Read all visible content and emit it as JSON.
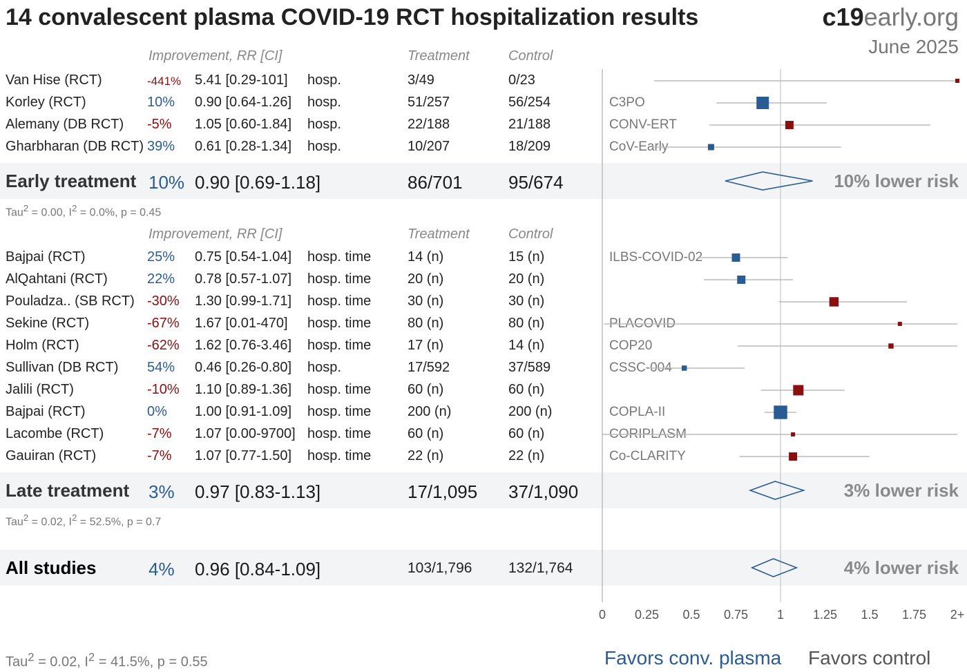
{
  "title": "14 convalescent plasma COVID-19 RCT hospitalization results",
  "brand": {
    "bold": "c19",
    "light": "early.org"
  },
  "date": "June 2025",
  "headers": {
    "improvement": "Improvement, RR [CI]",
    "treatment": "Treatment",
    "control": "Control"
  },
  "early": {
    "label": "Early treatment",
    "improvement": "10%",
    "rr": "0.90 [0.69-1.18]",
    "treatment": "86/701",
    "control": "95/674",
    "risk": "10% lower risk",
    "tau_pre": "Tau",
    "tau_post": " = 0.00, I",
    "tau_end": " = 0.0%, p = 0.45",
    "sup": "2"
  },
  "late": {
    "label": "Late treatment",
    "improvement": "3%",
    "rr": "0.97 [0.83-1.13]",
    "treatment": "17/1,095",
    "control": "37/1,090",
    "risk": "3% lower risk",
    "tau_pre": "Tau",
    "tau_post": " = 0.02, I",
    "tau_end": " = 52.5%, p = 0.7",
    "sup": "2"
  },
  "all": {
    "label": "All studies",
    "improvement": "4%",
    "rr": "0.96 [0.84-1.09]",
    "treatment": "103/1,796",
    "control": "132/1,764",
    "risk": "4% lower risk",
    "tau_pre": "Tau",
    "tau_post": " = 0.02, I",
    "tau_end": " = 41.5%, p = 0.55",
    "sup": "2"
  },
  "favors": {
    "left": "Favors conv. plasma",
    "right": "Favors control"
  },
  "colors": {
    "favor": "#2a5c94",
    "against": "#8a1010",
    "band": "#f3f4f6"
  },
  "chart_data": {
    "type": "forest",
    "xlim": [
      0,
      2
    ],
    "x_ticks": [
      "0",
      "0.25",
      "0.5",
      "0.75",
      "1",
      "1.25",
      "1.5",
      "1.75",
      "2+"
    ],
    "reference_line": 1,
    "studies": [
      {
        "name": "Van Hise (RCT)",
        "improvement": "-441%",
        "rr_text": "5.41 [0.29-101]",
        "outcome": "hosp.",
        "treatment": "3/49",
        "control": "0/23",
        "trial": "",
        "rr": 5.41,
        "lo": 0.29,
        "hi": 101,
        "weight": 1,
        "group": "early"
      },
      {
        "name": "Korley (RCT)",
        "improvement": "10%",
        "rr_text": "0.90 [0.64-1.26]",
        "outcome": "hosp.",
        "treatment": "51/257",
        "control": "56/254",
        "trial": "C3PO",
        "rr": 0.9,
        "lo": 0.64,
        "hi": 1.26,
        "weight": 5,
        "group": "early"
      },
      {
        "name": "Alemany (DB RCT)",
        "improvement": "-5%",
        "rr_text": "1.05 [0.60-1.84]",
        "outcome": "hosp.",
        "treatment": "22/188",
        "control": "21/188",
        "trial": "CONV-ERT",
        "rr": 1.05,
        "lo": 0.6,
        "hi": 1.84,
        "weight": 3,
        "group": "early"
      },
      {
        "name": "Gharbharan (DB RCT)",
        "improvement": "39%",
        "rr_text": "0.61 [0.28-1.34]",
        "outcome": "hosp.",
        "treatment": "10/207",
        "control": "18/209",
        "trial": "CoV-Early",
        "rr": 0.61,
        "lo": 0.28,
        "hi": 1.34,
        "weight": 2,
        "group": "early"
      },
      {
        "name": "Bajpai (RCT)",
        "improvement": "25%",
        "rr_text": "0.75 [0.54-1.04]",
        "outcome": "hosp. time",
        "treatment": "14 (n)",
        "control": "15 (n)",
        "trial": "ILBS-COVID-02",
        "rr": 0.75,
        "lo": 0.54,
        "hi": 1.04,
        "weight": 3,
        "group": "late"
      },
      {
        "name": "AlQahtani (RCT)",
        "improvement": "22%",
        "rr_text": "0.78 [0.57-1.07]",
        "outcome": "hosp. time",
        "treatment": "20 (n)",
        "control": "20 (n)",
        "trial": "",
        "rr": 0.78,
        "lo": 0.57,
        "hi": 1.07,
        "weight": 3,
        "group": "late"
      },
      {
        "name": "Pouladza.. (SB RCT)",
        "improvement": "-30%",
        "rr_text": "1.30 [0.99-1.71]",
        "outcome": "hosp. time",
        "treatment": "30 (n)",
        "control": "30 (n)",
        "trial": "",
        "rr": 1.3,
        "lo": 0.99,
        "hi": 1.71,
        "weight": 3.5,
        "group": "late"
      },
      {
        "name": "Sekine (RCT)",
        "improvement": "-67%",
        "rr_text": "1.67 [0.01-470]",
        "outcome": "hosp. time",
        "treatment": "80 (n)",
        "control": "80 (n)",
        "trial": "PLACOVID",
        "rr": 1.67,
        "lo": 0.01,
        "hi": 470,
        "weight": 1,
        "group": "late"
      },
      {
        "name": "Holm (RCT)",
        "improvement": "-62%",
        "rr_text": "1.62 [0.76-3.46]",
        "outcome": "hosp. time",
        "treatment": "17 (n)",
        "control": "14 (n)",
        "trial": "COP20",
        "rr": 1.62,
        "lo": 0.76,
        "hi": 3.46,
        "weight": 1.5,
        "group": "late"
      },
      {
        "name": "Sullivan (DB RCT)",
        "improvement": "54%",
        "rr_text": "0.46 [0.26-0.80]",
        "outcome": "hosp.",
        "treatment": "17/592",
        "control": "37/589",
        "trial": "CSSC-004",
        "rr": 0.46,
        "lo": 0.26,
        "hi": 0.8,
        "weight": 1.5,
        "group": "late"
      },
      {
        "name": "Jalili (RCT)",
        "improvement": "-10%",
        "rr_text": "1.10 [0.89-1.36]",
        "outcome": "hosp. time",
        "treatment": "60 (n)",
        "control": "60 (n)",
        "trial": "",
        "rr": 1.1,
        "lo": 0.89,
        "hi": 1.36,
        "weight": 4,
        "group": "late"
      },
      {
        "name": "Bajpai (RCT)",
        "improvement": "0%",
        "rr_text": "1.00 [0.91-1.09]",
        "outcome": "hosp. time",
        "treatment": "200 (n)",
        "control": "200 (n)",
        "trial": "COPLA-II",
        "rr": 1.0,
        "lo": 0.91,
        "hi": 1.09,
        "weight": 5.5,
        "group": "late"
      },
      {
        "name": "Lacombe (RCT)",
        "improvement": "-7%",
        "rr_text": "1.07 [0.00-9700]",
        "outcome": "hosp. time",
        "treatment": "60 (n)",
        "control": "60 (n)",
        "trial": "CORIPLASM",
        "rr": 1.07,
        "lo": 0.001,
        "hi": 9700,
        "weight": 1,
        "group": "late"
      },
      {
        "name": "Gauiran (RCT)",
        "improvement": "-7%",
        "rr_text": "1.07 [0.77-1.50]",
        "outcome": "hosp. time",
        "treatment": "22 (n)",
        "control": "22 (n)",
        "trial": "Co-CLARITY",
        "rr": 1.07,
        "lo": 0.77,
        "hi": 1.5,
        "weight": 3,
        "group": "late"
      }
    ],
    "summaries": [
      {
        "name": "Early treatment",
        "rr": 0.9,
        "lo": 0.69,
        "hi": 1.18
      },
      {
        "name": "Late treatment",
        "rr": 0.97,
        "lo": 0.83,
        "hi": 1.13
      },
      {
        "name": "All studies",
        "rr": 0.96,
        "lo": 0.84,
        "hi": 1.09
      }
    ]
  }
}
